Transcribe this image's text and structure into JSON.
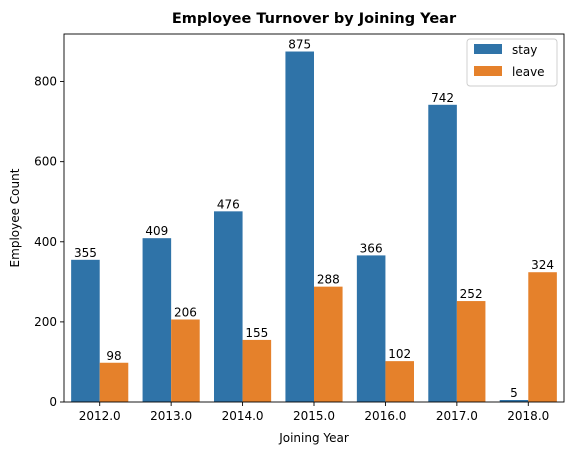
{
  "chart_data": {
    "type": "bar",
    "title": "Employee Turnover by Joining Year",
    "xlabel": "Joining Year",
    "ylabel": "Employee Count",
    "categories": [
      "2012.0",
      "2013.0",
      "2014.0",
      "2015.0",
      "2016.0",
      "2017.0",
      "2018.0"
    ],
    "series": [
      {
        "name": "stay",
        "color": "#2f73a8",
        "values": [
          355,
          409,
          476,
          875,
          366,
          742,
          5
        ]
      },
      {
        "name": "leave",
        "color": "#e5812b",
        "values": [
          98,
          206,
          155,
          288,
          102,
          252,
          324
        ]
      }
    ],
    "ylim": [
      0,
      918.75
    ],
    "yticks": [
      0,
      200,
      400,
      600,
      800
    ],
    "grid": false,
    "legend_position": "top-right"
  }
}
